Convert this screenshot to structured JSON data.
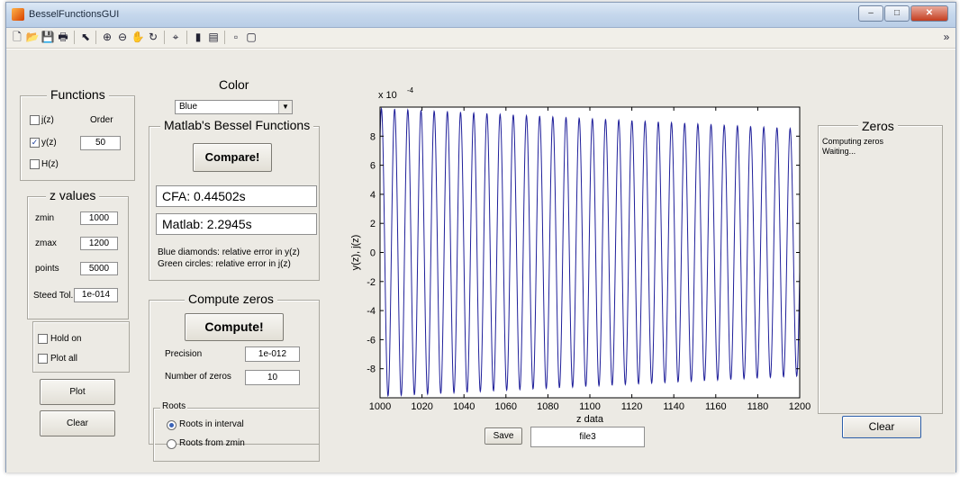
{
  "window": {
    "title": "BesselFunctionsGUI"
  },
  "functions": {
    "title": "Functions",
    "order_label": "Order",
    "order_value": "50",
    "items": [
      {
        "label": "j(z)",
        "checked": false
      },
      {
        "label": "y(z)",
        "checked": true
      },
      {
        "label": "H(z)",
        "checked": false
      }
    ]
  },
  "zvalues": {
    "title": "z values",
    "zmin_label": "zmin",
    "zmin": "1000",
    "zmax_label": "zmax",
    "zmax": "1200",
    "points_label": "points",
    "points": "5000",
    "tol_label": "Steed Tol.",
    "tol": "1e-014"
  },
  "options": {
    "hold_on": "Hold on",
    "plot_all": "Plot all"
  },
  "left_buttons": {
    "plot": "Plot",
    "clear": "Clear"
  },
  "color": {
    "label": "Color",
    "selected": "Blue"
  },
  "matlab": {
    "title": "Matlab's Bessel Functions",
    "compare": "Compare!",
    "cfa": "CFA:   0.44502s",
    "matlab_time": "Matlab: 2.2945s",
    "note1": "Blue diamonds: relative error in y(z)",
    "note2": "Green circles: relative error in j(z)"
  },
  "compute": {
    "title": "Compute zeros",
    "button": "Compute!",
    "precision_label": "Precision",
    "precision": "1e-012",
    "nzeros_label": "Number of zeros",
    "nzeros": "10"
  },
  "roots": {
    "title": "Roots",
    "interval": "Roots in interval",
    "from_zmin": "Roots from zmin"
  },
  "save": {
    "button": "Save",
    "file": "file3"
  },
  "zeros": {
    "title": "Zeros",
    "line1": "Computing zeros",
    "line2": "Waiting...",
    "clear": "Clear"
  },
  "chart_data": {
    "type": "line",
    "xlabel": "z data",
    "ylabel": "y(z), j(z)",
    "exponent_label": "x 10",
    "exponent_power": "-4",
    "xlim": [
      1000,
      1200
    ],
    "ylim": [
      -10,
      10
    ],
    "xticks": [
      1000,
      1020,
      1040,
      1060,
      1080,
      1100,
      1120,
      1140,
      1160,
      1180,
      1200
    ],
    "yticks": [
      8,
      6,
      4,
      2,
      0,
      -2,
      -4,
      -6,
      -8
    ],
    "series": [
      {
        "color": "#1f1f9a",
        "amplitude_start": 9.9,
        "amplitude_end": 8.5,
        "period": 6.283
      }
    ]
  }
}
